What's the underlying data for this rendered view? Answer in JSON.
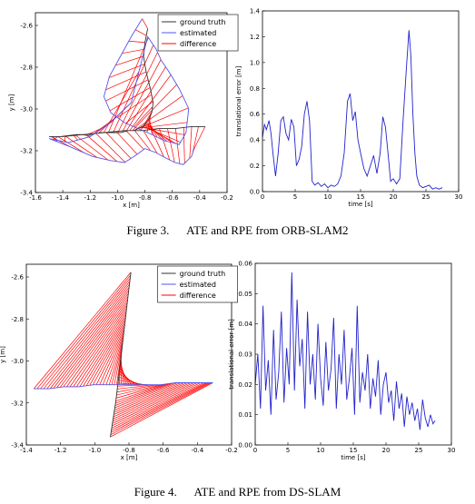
{
  "chart_data": [
    {
      "id": "ate_orb",
      "type": "line",
      "xlabel": "x [m]",
      "ylabel": "y [m]",
      "xlim": [
        -1.6,
        -0.2
      ],
      "ylim": [
        -3.4,
        -2.5
      ],
      "xticks": [
        "-1.6",
        "-1.4",
        "-1.2",
        "-1.0",
        "-0.8",
        "-0.6",
        "-0.4",
        "-0.2"
      ],
      "yticks": [
        "-2.6",
        "-2.8",
        "-3.0",
        "-3.2",
        "-3.4"
      ],
      "legend": [
        "ground truth",
        "estimated",
        "difference"
      ],
      "legend_position": "top-right",
      "series": [
        {
          "name": "ground truth",
          "color": "#333333",
          "x": [
            -0.78,
            -0.8,
            -0.81,
            -0.79,
            -0.76,
            -0.74,
            -0.75,
            -0.77,
            -0.79,
            -0.8,
            -0.82,
            -0.85,
            -0.88,
            -0.92,
            -0.98,
            -1.05,
            -1.12,
            -1.2,
            -1.3,
            -1.42,
            -1.5,
            -1.4,
            -1.25,
            -1.1,
            -0.95,
            -0.82,
            -0.7,
            -0.58,
            -0.46,
            -0.36
          ],
          "y": [
            -2.58,
            -2.65,
            -2.72,
            -2.8,
            -2.88,
            -2.95,
            -3.0,
            -3.03,
            -3.05,
            -3.06,
            -3.07,
            -3.08,
            -3.09,
            -3.09,
            -3.1,
            -3.1,
            -3.1,
            -3.11,
            -3.11,
            -3.12,
            -3.12,
            -3.12,
            -3.11,
            -3.1,
            -3.09,
            -3.09,
            -3.08,
            -3.08,
            -3.07,
            -3.07
          ]
        },
        {
          "name": "estimated",
          "color": "#5555ee",
          "x": [
            -0.82,
            -0.9,
            -0.98,
            -1.06,
            -1.1,
            -1.05,
            -0.95,
            -0.85,
            -0.78,
            -0.72,
            -0.66,
            -0.6,
            -0.55,
            -0.5,
            -0.48,
            -0.55,
            -0.62,
            -0.68,
            -0.72,
            -0.78,
            -0.9,
            -1.05,
            -1.2,
            -1.36,
            -1.5,
            -1.35,
            -1.18,
            -1.05,
            -0.95,
            -0.88,
            -0.8,
            -0.72,
            -0.64,
            -0.58,
            -0.52,
            -0.46,
            -0.44
          ],
          "y": [
            -2.53,
            -2.62,
            -2.72,
            -2.82,
            -2.92,
            -3.0,
            -3.05,
            -3.08,
            -3.1,
            -3.12,
            -3.14,
            -3.15,
            -3.16,
            -3.1,
            -2.98,
            -2.88,
            -2.8,
            -2.74,
            -2.68,
            -2.62,
            -2.95,
            -3.05,
            -3.12,
            -3.15,
            -3.13,
            -3.17,
            -3.22,
            -3.24,
            -3.25,
            -3.22,
            -3.18,
            -3.2,
            -3.23,
            -3.25,
            -3.26,
            -3.22,
            -3.18
          ]
        }
      ]
    },
    {
      "id": "rpe_orb",
      "type": "line",
      "xlabel": "time [s]",
      "ylabel": "translational error [m]",
      "xlim": [
        0,
        30
      ],
      "ylim": [
        0,
        1.4
      ],
      "xticks": [
        "0",
        "5",
        "10",
        "15",
        "20",
        "25",
        "30"
      ],
      "yticks": [
        "0.0",
        "0.2",
        "0.4",
        "0.6",
        "0.8",
        "1.0",
        "1.2",
        "1.4"
      ],
      "series": [
        {
          "name": "",
          "color": "#2222cc",
          "x": [
            0.0,
            0.3,
            0.6,
            1.0,
            1.3,
            1.6,
            2.0,
            2.4,
            2.8,
            3.2,
            3.6,
            4.0,
            4.4,
            4.8,
            5.2,
            5.6,
            6.0,
            6.4,
            6.8,
            7.2,
            7.6,
            8.0,
            8.5,
            9.0,
            9.5,
            10.0,
            10.5,
            11.0,
            11.5,
            12.0,
            12.5,
            13.0,
            13.4,
            13.8,
            14.2,
            14.6,
            15.0,
            15.5,
            16.0,
            16.5,
            17.0,
            17.5,
            18.0,
            18.4,
            18.8,
            19.2,
            19.6,
            20.0,
            20.5,
            21.0,
            21.5,
            22.0,
            22.4,
            22.7,
            23.0,
            23.3,
            23.6,
            24.0,
            24.5,
            25.0,
            25.5,
            26.0,
            26.5,
            27.0,
            27.5
          ],
          "y": [
            0.42,
            0.52,
            0.48,
            0.55,
            0.45,
            0.3,
            0.12,
            0.3,
            0.55,
            0.58,
            0.45,
            0.4,
            0.56,
            0.5,
            0.2,
            0.25,
            0.35,
            0.6,
            0.7,
            0.55,
            0.08,
            0.05,
            0.07,
            0.04,
            0.06,
            0.03,
            0.05,
            0.04,
            0.06,
            0.12,
            0.3,
            0.7,
            0.76,
            0.55,
            0.62,
            0.4,
            0.3,
            0.18,
            0.12,
            0.2,
            0.28,
            0.14,
            0.3,
            0.58,
            0.5,
            0.3,
            0.08,
            0.1,
            0.06,
            0.1,
            0.55,
            0.95,
            1.25,
            1.05,
            0.6,
            0.3,
            0.12,
            0.05,
            0.03,
            0.04,
            0.05,
            0.02,
            0.03,
            0.02,
            0.03
          ]
        }
      ]
    },
    {
      "id": "ate_ds",
      "type": "line",
      "xlabel": "x [m]",
      "ylabel": "y [m]",
      "xlim": [
        -1.3,
        -0.2
      ],
      "ylim": [
        -3.4,
        -2.5
      ],
      "xticks": [
        "-1.4",
        "-1.2",
        "-1.0",
        "-0.8",
        "-0.6",
        "-0.4",
        "-0.2"
      ],
      "yticks": [
        "-2.6",
        "-2.8",
        "-3.0",
        "-3.2",
        "-3.4"
      ],
      "legend": [
        "ground truth",
        "estimated",
        "difference"
      ],
      "legend_position": "top-right",
      "series": [
        {
          "name": "ground truth",
          "color": "#333333",
          "x": [
            -0.74,
            -0.75,
            -0.76,
            -0.77,
            -0.78,
            -0.79,
            -0.8,
            -0.81,
            -0.82,
            -0.83,
            -0.84,
            -0.85
          ],
          "y": [
            -2.54,
            -2.62,
            -2.7,
            -2.78,
            -2.86,
            -2.94,
            -3.02,
            -3.1,
            -3.18,
            -3.24,
            -3.3,
            -3.36
          ]
        },
        {
          "name": "estimated",
          "color": "#5555ee",
          "x": [
            -1.26,
            -1.18,
            -1.1,
            -1.02,
            -0.94,
            -0.86,
            -0.8,
            -0.74,
            -0.66,
            -0.58,
            -0.5,
            -0.42,
            -0.34,
            -0.3
          ],
          "y": [
            -3.12,
            -3.12,
            -3.11,
            -3.11,
            -3.1,
            -3.1,
            -3.1,
            -3.1,
            -3.1,
            -3.1,
            -3.09,
            -3.09,
            -3.09,
            -3.09
          ]
        }
      ]
    },
    {
      "id": "rpe_ds",
      "type": "line",
      "xlabel": "time [s]",
      "ylabel": "translational error [m]",
      "xlim": [
        0,
        30
      ],
      "ylim": [
        0,
        0.06
      ],
      "xticks": [
        "0",
        "5",
        "10",
        "15",
        "20",
        "25",
        "30"
      ],
      "yticks": [
        "0.00",
        "0.01",
        "0.02",
        "0.03",
        "0.04",
        "0.05",
        "0.06"
      ],
      "series": [
        {
          "name": "",
          "color": "#2222cc",
          "x": [
            0.0,
            0.4,
            0.8,
            1.2,
            1.6,
            2.0,
            2.4,
            2.8,
            3.2,
            3.6,
            4.0,
            4.4,
            4.8,
            5.2,
            5.6,
            6.0,
            6.4,
            6.8,
            7.2,
            7.6,
            8.0,
            8.4,
            8.8,
            9.2,
            9.6,
            10.0,
            10.4,
            10.8,
            11.2,
            11.6,
            12.0,
            12.4,
            12.8,
            13.2,
            13.6,
            14.0,
            14.4,
            14.8,
            15.2,
            15.6,
            16.0,
            16.4,
            16.8,
            17.2,
            17.6,
            18.0,
            18.4,
            18.8,
            19.2,
            19.6,
            20.0,
            20.4,
            20.8,
            21.2,
            21.6,
            22.0,
            22.4,
            22.8,
            23.2,
            23.6,
            24.0,
            24.4,
            24.8,
            25.2,
            25.6,
            26.0,
            26.4,
            26.8,
            27.2,
            27.5
          ],
          "y": [
            0.02,
            0.03,
            0.012,
            0.046,
            0.018,
            0.028,
            0.01,
            0.038,
            0.015,
            0.024,
            0.044,
            0.014,
            0.032,
            0.02,
            0.057,
            0.018,
            0.048,
            0.026,
            0.035,
            0.012,
            0.044,
            0.02,
            0.03,
            0.015,
            0.04,
            0.022,
            0.013,
            0.034,
            0.018,
            0.025,
            0.042,
            0.012,
            0.03,
            0.02,
            0.038,
            0.015,
            0.022,
            0.032,
            0.01,
            0.046,
            0.014,
            0.024,
            0.018,
            0.03,
            0.012,
            0.022,
            0.016,
            0.028,
            0.01,
            0.02,
            0.024,
            0.014,
            0.018,
            0.008,
            0.021,
            0.012,
            0.017,
            0.006,
            0.016,
            0.01,
            0.014,
            0.008,
            0.012,
            0.005,
            0.015,
            0.009,
            0.006,
            0.01,
            0.007,
            0.008
          ]
        }
      ]
    }
  ],
  "captions": {
    "fig3": "Figure 3.      ATE and RPE from ORB-SLAM2",
    "fig4": "Figure 4.      ATE and RPE from DS-SLAM"
  }
}
